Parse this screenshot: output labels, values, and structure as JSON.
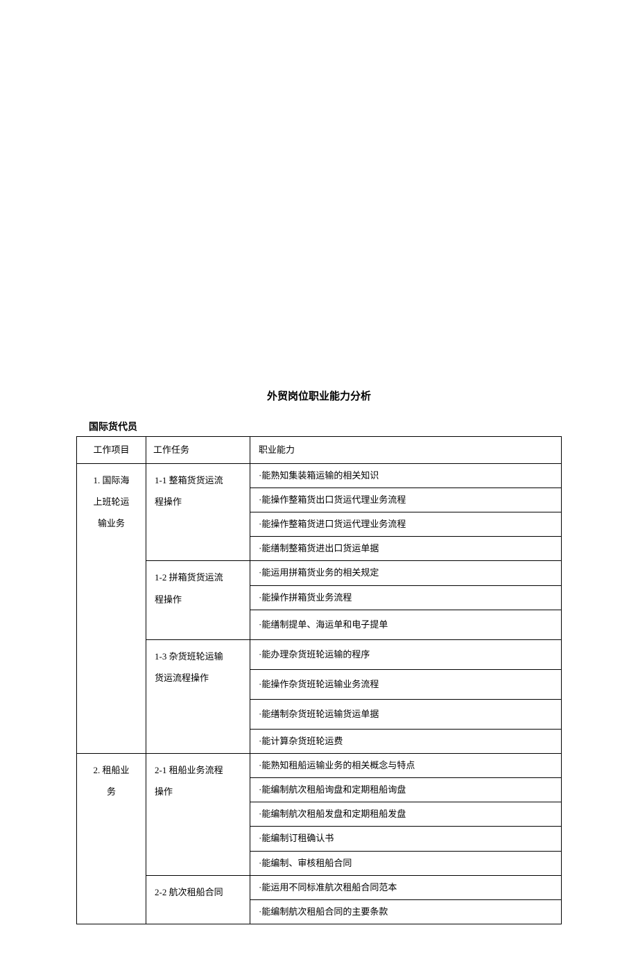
{
  "title": "外贸岗位职业能力分析",
  "subtitle": "国际货代员",
  "headers": {
    "project": "工作项目",
    "task": "工作任务",
    "ability": "职业能力"
  },
  "project1": {
    "line1": "1. 国际海",
    "line2": "上班轮运",
    "line3": "输业务"
  },
  "project2": {
    "line1": "2. 租船业",
    "line2": "务"
  },
  "task11": {
    "line1": "1-1 整箱货货运流",
    "line2": "程操作"
  },
  "task12": {
    "line1": "1-2 拼箱货货运流",
    "line2": "程操作"
  },
  "task13": {
    "line1": "1-3 杂货班轮运输",
    "line2": "货运流程操作"
  },
  "task21": {
    "line1": "2-1 租船业务流程",
    "line2": "操作"
  },
  "task22": {
    "line1": "2-2 航次租船合同"
  },
  "abilities": {
    "a111": "·能熟知集装箱运输的相关知识",
    "a112": "·能操作整箱货出口货运代理业务流程",
    "a113": "·能操作整箱货进口货运代理业务流程",
    "a114": "·能缮制整箱货进出口货运单据",
    "a121": "·能运用拼箱货业务的相关规定",
    "a122": "·能操作拼箱货业务流程",
    "a123": "·能缮制提单、海运单和电子提单",
    "a131": "·能办理杂货班轮运输的程序",
    "a132": "·能操作杂货班轮运输业务流程",
    "a133": "·能缮制杂货班轮运输货运单据",
    "a134": "·能计算杂货班轮运费",
    "a211": "·能熟知租船运输业务的相关概念与特点",
    "a212": "·能编制航次租船询盘和定期租船询盘",
    "a213": "·能编制航次租船发盘和定期租船发盘",
    "a214": "·能编制订租确认书",
    "a215": "·能编制、审核租船合同",
    "a221": "·能运用不同标准航次租船合同范本",
    "a222": "·能编制航次租船合同的主要条款"
  }
}
